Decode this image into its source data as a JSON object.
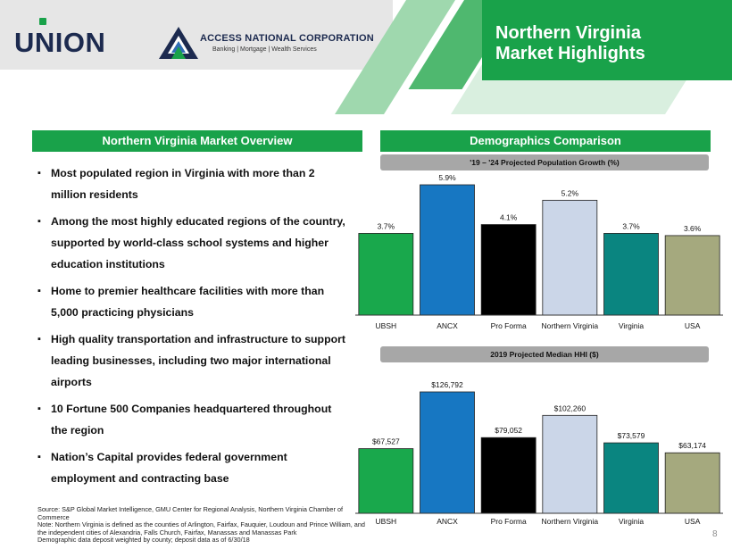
{
  "header": {
    "title_line1": "Northern Virginia",
    "title_line2": "Market Highlights",
    "union_logo_text": "UNION",
    "access_name": "ACCESS NATIONAL CORPORATION",
    "access_tagline": "Banking | Mortgage | Wealth Services"
  },
  "left": {
    "section_title": "Northern Virginia Market Overview",
    "bullets": [
      "Most populated region in Virginia with more than 2 million residents",
      "Among the most highly educated regions of the country, supported by world-class school systems and higher education institutions",
      "Home to premier healthcare facilities with more than 5,000 practicing physicians",
      "High quality transportation and infrastructure to support leading businesses, including two major international airports",
      "10 Fortune 500 Companies headquartered throughout the region",
      "Nation’s Capital provides federal government employment and contracting base"
    ],
    "source_line1": "Source: S&P Global Market Intelligence, GMU Center for Regional Analysis, Northern Virginia Chamber of Commerce",
    "source_line2": "Note: Northern Virginia is defined as the counties of Arlington, Fairfax, Fauquier, Loudoun and Prince William, and the independent cities of Alexandria, Falls Church, Fairfax, Manassas and Manassas Park",
    "source_line3": "Demographic data deposit weighted by county; deposit data as of 6/30/18"
  },
  "right": {
    "section_title": "Demographics Comparison"
  },
  "page_number": "8",
  "colors": {
    "green": "#19a24a",
    "navy": "#1c2a4f",
    "bar_colors": [
      "#19a84c",
      "#1777c2",
      "#000000",
      "#cbd6e8",
      "#0a8580",
      "#a5a97e"
    ]
  },
  "chart_data": [
    {
      "type": "bar",
      "title": "'19 – '24 Projected Population Growth (%)",
      "categories": [
        "UBSH",
        "ANCX",
        "Pro Forma",
        "Northern Virginia",
        "Virginia",
        "USA"
      ],
      "values": [
        3.7,
        5.9,
        4.1,
        5.2,
        3.7,
        3.6
      ],
      "labels": [
        "3.7%",
        "5.9%",
        "4.1%",
        "5.2%",
        "3.7%",
        "3.6%"
      ],
      "ylim": [
        0,
        5.9
      ]
    },
    {
      "type": "bar",
      "title": "2019 Projected Median HHI ($)",
      "categories": [
        "UBSH",
        "ANCX",
        "Pro Forma",
        "Northern Virginia",
        "Virginia",
        "USA"
      ],
      "values": [
        67527,
        126792,
        79052,
        102260,
        73579,
        63174
      ],
      "labels": [
        "$67,527",
        "$126,792",
        "$79,052",
        "$102,260",
        "$73,579",
        "$63,174"
      ],
      "ylim": [
        0,
        126792
      ]
    }
  ]
}
